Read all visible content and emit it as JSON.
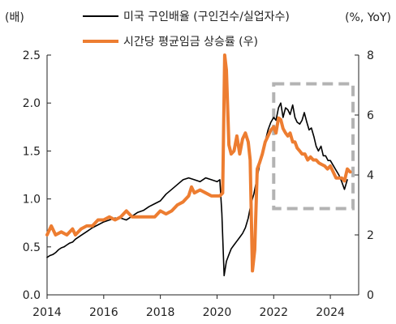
{
  "chart_data": {
    "type": "line",
    "y_left_unit": "(배)",
    "y_right_unit": "(%, YoY)",
    "xlim": [
      2014,
      2025
    ],
    "ylim_left": [
      0.0,
      2.5
    ],
    "ylim_right": [
      0,
      8
    ],
    "x_ticks": [
      2014,
      2016,
      2018,
      2020,
      2022,
      2024
    ],
    "x_tick_labels": [
      "2014",
      "2016",
      "2018",
      "2020",
      "2022",
      "2024"
    ],
    "y_left_ticks": [
      0.0,
      0.5,
      1.0,
      1.5,
      2.0,
      2.5
    ],
    "y_left_tick_labels": [
      "0.0",
      "0.5",
      "1.0",
      "1.5",
      "2.0",
      "2.5"
    ],
    "y_right_ticks": [
      0,
      2,
      4,
      6,
      8
    ],
    "y_right_tick_labels": [
      "0",
      "2",
      "4",
      "6",
      "8"
    ],
    "legend_position": "top",
    "highlight_box": {
      "x": [
        2022.0,
        2024.8
      ],
      "y_left": [
        0.9,
        2.2
      ],
      "color": "#b3b3b3"
    },
    "series": [
      {
        "name": "미국 구인배율 (구인건수/실업자수)",
        "axis": "left",
        "color": "#000000",
        "x": [
          2014.0,
          2014.1,
          2014.2,
          2014.3,
          2014.4,
          2014.5,
          2014.6,
          2014.7,
          2014.8,
          2014.9,
          2015.0,
          2015.2,
          2015.4,
          2015.6,
          2015.8,
          2016.0,
          2016.2,
          2016.4,
          2016.6,
          2016.8,
          2017.0,
          2017.2,
          2017.4,
          2017.6,
          2017.8,
          2018.0,
          2018.2,
          2018.4,
          2018.6,
          2018.8,
          2019.0,
          2019.2,
          2019.4,
          2019.6,
          2019.8,
          2020.0,
          2020.1,
          2020.17,
          2020.25,
          2020.33,
          2020.42,
          2020.5,
          2020.6,
          2020.7,
          2020.8,
          2020.9,
          2021.0,
          2021.1,
          2021.2,
          2021.3,
          2021.4,
          2021.5,
          2021.6,
          2021.7,
          2021.8,
          2021.9,
          2022.0,
          2022.08,
          2022.17,
          2022.25,
          2022.33,
          2022.42,
          2022.5,
          2022.58,
          2022.67,
          2022.75,
          2022.83,
          2022.92,
          2023.0,
          2023.08,
          2023.17,
          2023.25,
          2023.33,
          2023.42,
          2023.5,
          2023.58,
          2023.67,
          2023.75,
          2023.83,
          2023.92,
          2024.0,
          2024.1,
          2024.2,
          2024.3,
          2024.4,
          2024.5,
          2024.6
        ],
        "y": [
          0.39,
          0.41,
          0.42,
          0.44,
          0.47,
          0.49,
          0.5,
          0.52,
          0.54,
          0.55,
          0.58,
          0.62,
          0.66,
          0.7,
          0.73,
          0.76,
          0.78,
          0.8,
          0.8,
          0.78,
          0.82,
          0.86,
          0.88,
          0.92,
          0.95,
          0.98,
          1.05,
          1.1,
          1.15,
          1.2,
          1.22,
          1.2,
          1.18,
          1.22,
          1.2,
          1.18,
          1.2,
          0.85,
          0.2,
          0.35,
          0.42,
          0.48,
          0.52,
          0.56,
          0.6,
          0.64,
          0.7,
          0.8,
          0.95,
          1.05,
          1.2,
          1.35,
          1.5,
          1.6,
          1.72,
          1.8,
          1.85,
          1.82,
          1.95,
          2.0,
          1.85,
          1.95,
          1.93,
          1.88,
          1.98,
          1.85,
          1.8,
          1.78,
          1.82,
          1.9,
          1.8,
          1.72,
          1.74,
          1.65,
          1.55,
          1.5,
          1.55,
          1.45,
          1.45,
          1.4,
          1.4,
          1.35,
          1.3,
          1.25,
          1.18,
          1.1,
          1.2
        ]
      },
      {
        "name": "시간당 평균임금 상승률 (우)",
        "axis": "right",
        "color": "#ed7d31",
        "x": [
          2014.0,
          2014.15,
          2014.3,
          2014.5,
          2014.7,
          2014.9,
          2015.0,
          2015.2,
          2015.4,
          2015.6,
          2015.8,
          2016.0,
          2016.2,
          2016.4,
          2016.6,
          2016.8,
          2017.0,
          2017.2,
          2017.4,
          2017.6,
          2017.8,
          2018.0,
          2018.2,
          2018.4,
          2018.6,
          2018.8,
          2019.0,
          2019.1,
          2019.2,
          2019.4,
          2019.6,
          2019.8,
          2020.0,
          2020.1,
          2020.2,
          2020.27,
          2020.33,
          2020.42,
          2020.5,
          2020.6,
          2020.7,
          2020.8,
          2020.9,
          2021.0,
          2021.1,
          2021.17,
          2021.25,
          2021.33,
          2021.42,
          2021.5,
          2021.6,
          2021.7,
          2021.8,
          2021.9,
          2022.0,
          2022.08,
          2022.17,
          2022.25,
          2022.33,
          2022.42,
          2022.5,
          2022.58,
          2022.67,
          2022.75,
          2022.83,
          2022.92,
          2023.0,
          2023.1,
          2023.2,
          2023.3,
          2023.4,
          2023.5,
          2023.6,
          2023.7,
          2023.8,
          2023.9,
          2024.0,
          2024.1,
          2024.2,
          2024.3,
          2024.4,
          2024.5,
          2024.6,
          2024.7
        ],
        "y": [
          2.0,
          2.3,
          2.0,
          2.1,
          2.0,
          2.2,
          2.0,
          2.2,
          2.3,
          2.3,
          2.5,
          2.5,
          2.6,
          2.5,
          2.6,
          2.8,
          2.6,
          2.6,
          2.6,
          2.6,
          2.6,
          2.8,
          2.7,
          2.8,
          3.0,
          3.1,
          3.3,
          3.6,
          3.4,
          3.5,
          3.4,
          3.3,
          3.3,
          3.3,
          3.4,
          8.0,
          7.5,
          5.0,
          4.7,
          4.8,
          5.3,
          4.7,
          5.2,
          5.4,
          5.1,
          4.5,
          0.8,
          1.5,
          4.2,
          4.4,
          4.7,
          5.1,
          5.3,
          5.5,
          5.6,
          5.4,
          5.9,
          5.85,
          5.55,
          5.4,
          5.3,
          5.4,
          5.1,
          5.1,
          4.9,
          4.8,
          4.7,
          4.7,
          4.5,
          4.6,
          4.5,
          4.5,
          4.4,
          4.35,
          4.3,
          4.2,
          4.3,
          4.1,
          3.9,
          3.9,
          3.9,
          3.8,
          4.2,
          4.1
        ]
      }
    ]
  }
}
